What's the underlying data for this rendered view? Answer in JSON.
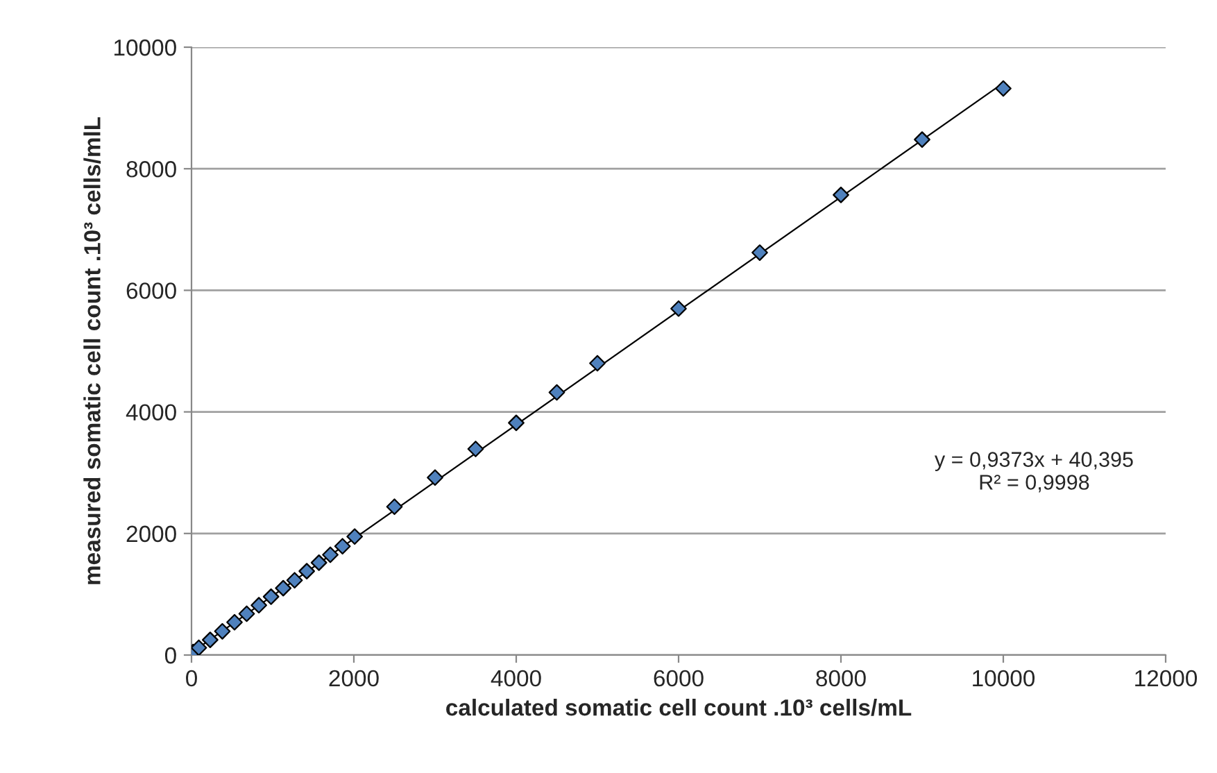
{
  "chart_data": {
    "type": "scatter",
    "xlabel": "calculated somatic cell count .10³ cells/mL",
    "ylabel": "measured somatic cell count .10³ cells/mlL",
    "series": [
      {
        "color": "#4f81bd",
        "marker": "diamond",
        "x": [
          20,
          90,
          230,
          380,
          530,
          680,
          830,
          980,
          1130,
          1270,
          1420,
          1570,
          1710,
          1860,
          2010,
          2500,
          3000,
          3500,
          4000,
          4500,
          5000,
          6000,
          7000,
          8000,
          9000,
          10000
        ],
        "values": [
          50,
          120,
          250,
          390,
          540,
          680,
          820,
          960,
          1100,
          1230,
          1380,
          1520,
          1650,
          1790,
          1950,
          2440,
          2920,
          3390,
          3820,
          4320,
          4800,
          5700,
          6620,
          7570,
          8480,
          9320
        ]
      },
      {
        "type": "line",
        "color": "#000000",
        "x": [
          0,
          10000
        ],
        "values": [
          40,
          9410
        ]
      }
    ],
    "annotations": [
      "y = 0,9373x + 40,395\nR² = 0,9998"
    ],
    "xlim": [
      0,
      12000
    ],
    "xticks": [
      0,
      2000,
      4000,
      6000,
      8000,
      10000,
      12000
    ],
    "ylim": [
      0,
      10000
    ],
    "yticks": [
      0,
      2000,
      4000,
      6000,
      8000,
      10000
    ],
    "grid": "y",
    "legend": false
  }
}
